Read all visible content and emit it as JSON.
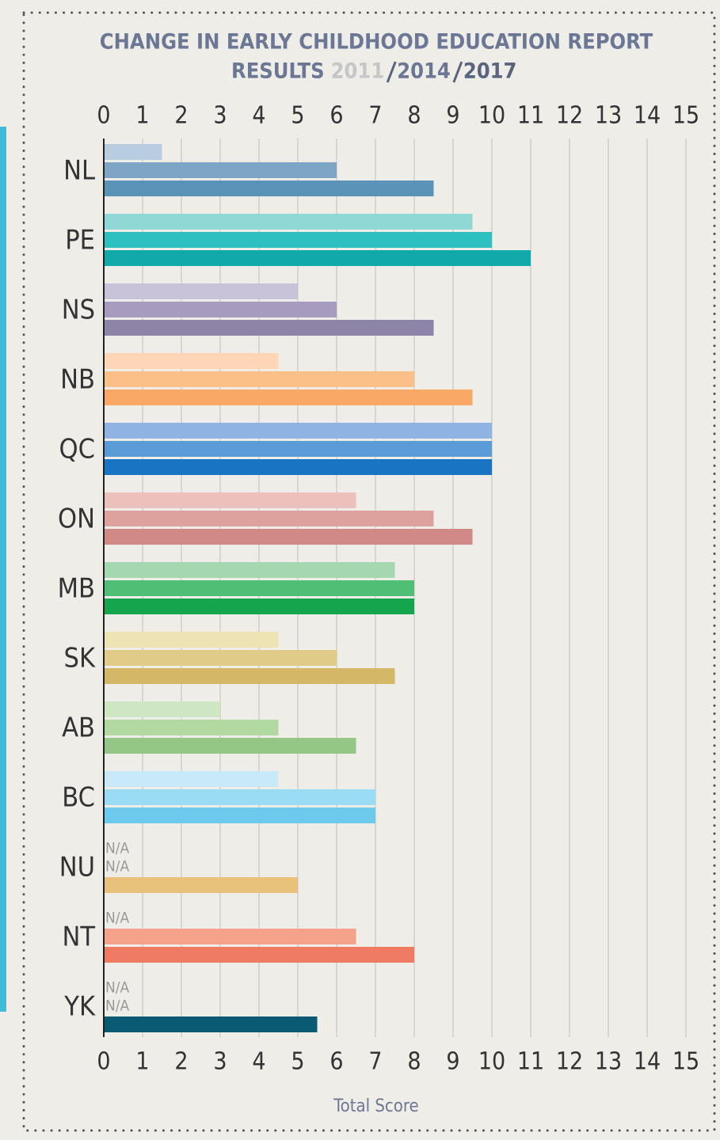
{
  "chart_data": {
    "type": "bar",
    "orientation": "horizontal",
    "title": "CHANGE IN EARLY CHILDHOOD EDUCATION REPORT",
    "subtitle": "RESULTS",
    "x_label": "Total Score",
    "categories": [
      "NL",
      "PE",
      "NS",
      "NB",
      "QC",
      "ON",
      "MB",
      "SK",
      "AB",
      "BC",
      "NU",
      "NT",
      "YK"
    ],
    "series": [
      {
        "name": "2011",
        "color": "#c6c6c6",
        "values": [
          1.5,
          9.5,
          5,
          4.5,
          10,
          6.5,
          7.5,
          4.5,
          3,
          4.5,
          null,
          null,
          null
        ],
        "value_labels": [
          null,
          null,
          null,
          null,
          null,
          null,
          null,
          null,
          null,
          null,
          "N/A",
          "N/A",
          "N/A"
        ],
        "colors": [
          "#b8cde0",
          "#8fd8d6",
          "#c9c3da",
          "#fdd7b5",
          "#8fb4e3",
          "#ecc1bc",
          "#a3d8b0",
          "#ede3b5",
          "#cfe6c3",
          "#c8eaf8",
          null,
          null,
          null
        ]
      },
      {
        "name": "2014",
        "color": "#6b7794",
        "values": [
          6,
          10,
          6,
          8,
          10,
          8.5,
          8,
          6,
          4.5,
          7,
          null,
          6.5,
          null
        ],
        "value_labels": [
          null,
          null,
          null,
          null,
          null,
          null,
          null,
          null,
          null,
          null,
          "N/A",
          null,
          "N/A"
        ],
        "colors": [
          "#7ea6c4",
          "#2ec0c0",
          "#a79bbf",
          "#fbbf88",
          "#5b9bd8",
          "#dea29e",
          "#4fbf75",
          "#e0cc88",
          "#b2d9a0",
          "#9adcf3",
          null,
          "#f4a28a",
          null
        ]
      },
      {
        "name": "2017",
        "color": "#5a6480",
        "values": [
          8.5,
          11,
          8.5,
          9.5,
          10,
          9.5,
          8,
          7.5,
          6.5,
          7,
          5,
          8,
          5.5
        ],
        "colors": [
          "#5a93b8",
          "#10aaaa",
          "#8e84a8",
          "#f9a866",
          "#1a74c4",
          "#d08985",
          "#14a54d",
          "#d4b868",
          "#94c785",
          "#6dcaec",
          "#e8c27a",
          "#ef7c62",
          "#0a5a74"
        ]
      }
    ],
    "xlim": [
      0,
      15
    ],
    "xticks": [
      0,
      1,
      2,
      3,
      4,
      5,
      6,
      7,
      8,
      9,
      10,
      11,
      12,
      13,
      14,
      15
    ],
    "grid": true
  }
}
